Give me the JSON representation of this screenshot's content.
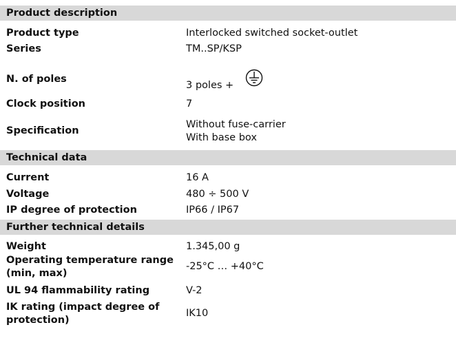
{
  "sections": [
    {
      "title": "Product description",
      "rows": [
        {
          "label": "Product type",
          "value": [
            "Interlocked switched socket-outlet"
          ]
        },
        {
          "label": "Series",
          "value": [
            "TM..SP/KSP"
          ]
        },
        {
          "label": "N. of poles",
          "value": [
            "3 poles +"
          ]
        },
        {
          "label": "Clock position",
          "value": [
            "7"
          ]
        },
        {
          "label": "Specification",
          "value": [
            "Without fuse-carrier",
            "With base box"
          ]
        }
      ]
    },
    {
      "title": "Technical data",
      "rows": [
        {
          "label": "Current",
          "value": [
            "16 A"
          ]
        },
        {
          "label": "Voltage",
          "value": [
            "480 ÷ 500 V"
          ]
        },
        {
          "label": "IP degree of protection",
          "value": [
            "IP66 / IP67"
          ]
        }
      ]
    },
    {
      "title": "Further technical details",
      "rows": [
        {
          "label": "Weight",
          "value": [
            "1.345,00 g"
          ]
        },
        {
          "label": "Operating temperature range (min, max)",
          "value": [
            "-25°C … +40°C"
          ]
        },
        {
          "label": "UL 94 flammability rating",
          "value": [
            "V-2"
          ]
        },
        {
          "label": "IK rating (impact degree of protection)",
          "value": [
            "IK10"
          ]
        }
      ]
    }
  ]
}
